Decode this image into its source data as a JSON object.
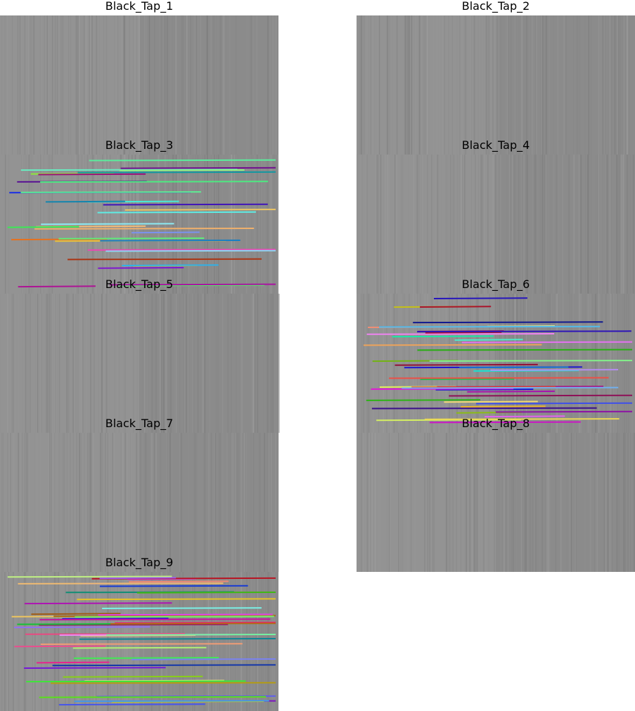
{
  "panels": [
    {
      "title": "Black_Tap_1"
    },
    {
      "title": "Black_Tap_2"
    },
    {
      "title": "Black_Tap_3"
    },
    {
      "title": "Black_Tap_4"
    },
    {
      "title": "Black_Tap_5"
    },
    {
      "title": "Black_Tap_6"
    },
    {
      "title": "Black_Tap_7"
    },
    {
      "title": "Black_Tap_8"
    },
    {
      "title": "Black_Tap_9"
    }
  ]
}
